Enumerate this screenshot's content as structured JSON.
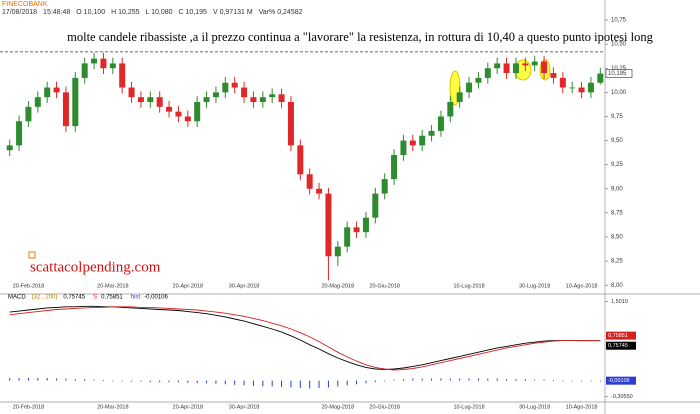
{
  "chart_data": [
    {
      "type": "candlestick",
      "symbol": "FINECOBANK",
      "info": [
        "17/08/2018",
        "15:48:48",
        "O 10,100",
        "H 10,255",
        "L 10,080",
        "C 10,195",
        "V 0,97131 M",
        "Var% 0,24582"
      ],
      "title": "molte candele ribassiste ,a il prezzo continua a \"lavorare\" la resistenza, in rottura di 10,40 a questo punto ipotesi long",
      "watermark": "scattacolpending.com",
      "up_color": "#2e8b2e",
      "down_color": "#e02828",
      "categories": [
        null,
        null,
        "20-Feb-2018",
        null,
        null,
        null,
        null,
        null,
        null,
        null,
        null,
        "20-Mar-2018",
        null,
        null,
        null,
        null,
        null,
        null,
        null,
        "20-Apr-2018",
        null,
        null,
        null,
        null,
        null,
        "30-Apr-2018",
        null,
        null,
        null,
        null,
        null,
        null,
        null,
        null,
        null,
        "20-Mag-2018",
        null,
        null,
        null,
        null,
        "20-Giu-2018",
        null,
        null,
        null,
        null,
        null,
        null,
        null,
        null,
        "10-Lug-2018",
        null,
        null,
        null,
        null,
        null,
        null,
        "30-Lug-2018",
        null,
        null,
        null,
        null,
        "10-Ago-2018",
        null,
        null
      ],
      "open": [
        9.4,
        9.45,
        9.7,
        9.85,
        9.95,
        10.05,
        10.0,
        9.65,
        10.15,
        10.3,
        10.35,
        10.25,
        10.3,
        10.05,
        9.95,
        9.9,
        9.95,
        9.85,
        9.8,
        9.75,
        9.7,
        9.9,
        9.95,
        10.0,
        10.1,
        10.05,
        9.95,
        9.9,
        9.95,
        9.98,
        9.9,
        9.45,
        9.15,
        9.0,
        8.95,
        8.3,
        8.4,
        8.6,
        8.55,
        8.7,
        8.95,
        9.1,
        9.35,
        9.5,
        9.45,
        9.55,
        9.6,
        9.75,
        9.9,
        10.0,
        10.1,
        10.15,
        10.25,
        10.3,
        10.2,
        10.3,
        10.28,
        10.32,
        10.2,
        10.15,
        10.05,
        10.05,
        10.0,
        10.1
      ],
      "high": [
        9.51,
        9.76,
        9.91,
        10.01,
        10.11,
        10.11,
        10.06,
        10.21,
        10.36,
        10.41,
        10.41,
        10.36,
        10.36,
        10.11,
        10.01,
        10.01,
        10.01,
        9.91,
        9.86,
        9.81,
        9.96,
        10.01,
        10.06,
        10.16,
        10.16,
        10.11,
        10.01,
        10.01,
        10.04,
        10.04,
        9.96,
        9.51,
        9.21,
        9.06,
        9.01,
        8.46,
        8.66,
        8.66,
        8.76,
        9.01,
        9.16,
        9.41,
        9.56,
        9.56,
        9.61,
        9.66,
        9.81,
        9.96,
        10.06,
        10.16,
        10.21,
        10.31,
        10.36,
        10.36,
        10.36,
        10.36,
        10.38,
        10.38,
        10.26,
        10.21,
        10.11,
        10.11,
        10.16,
        10.255
      ],
      "low": [
        9.34,
        9.39,
        9.64,
        9.79,
        9.89,
        9.94,
        9.59,
        9.59,
        10.09,
        10.24,
        10.19,
        10.19,
        9.99,
        9.89,
        9.84,
        9.84,
        9.79,
        9.74,
        9.69,
        9.64,
        9.64,
        9.84,
        9.89,
        9.94,
        9.99,
        9.89,
        9.84,
        9.84,
        9.89,
        9.84,
        9.39,
        9.09,
        8.94,
        8.89,
        8.05,
        8.2,
        8.34,
        8.49,
        8.49,
        8.64,
        8.89,
        9.04,
        9.29,
        9.39,
        9.39,
        9.49,
        9.54,
        9.69,
        9.84,
        9.94,
        10.04,
        10.09,
        10.19,
        10.14,
        10.14,
        10.22,
        10.22,
        10.14,
        10.09,
        9.99,
        9.99,
        9.94,
        9.94,
        10.08
      ],
      "close": [
        9.45,
        9.7,
        9.85,
        9.95,
        10.05,
        10.0,
        9.65,
        10.15,
        10.3,
        10.35,
        10.25,
        10.3,
        10.05,
        9.95,
        9.9,
        9.95,
        9.85,
        9.8,
        9.75,
        9.7,
        9.9,
        9.95,
        10.0,
        10.1,
        10.05,
        9.95,
        9.9,
        9.95,
        9.98,
        9.9,
        9.45,
        9.15,
        9.0,
        8.95,
        8.3,
        8.4,
        8.6,
        8.55,
        8.7,
        8.95,
        9.1,
        9.35,
        9.5,
        9.45,
        9.55,
        9.6,
        9.75,
        9.9,
        10.0,
        10.1,
        10.15,
        10.25,
        10.3,
        10.2,
        10.3,
        10.28,
        10.32,
        10.2,
        10.15,
        10.05,
        10.05,
        10.0,
        10.1,
        10.195
      ],
      "last_label": "10,195",
      "reference_line": 10.42,
      "ylim": [
        7.95,
        10.875
      ],
      "yticks": [
        {
          "value": 8,
          "label": "8,00"
        },
        {
          "value": 8.25,
          "label": "8,25"
        },
        {
          "value": 8.5,
          "label": "8,50"
        },
        {
          "value": 8.75,
          "label": "8,75"
        },
        {
          "value": 9,
          "label": "9,00"
        },
        {
          "value": 9.25,
          "label": "9,25"
        },
        {
          "value": 9.5,
          "label": "9,50"
        },
        {
          "value": 9.75,
          "label": "9,75"
        },
        {
          "value": 10,
          "label": "10,00"
        },
        {
          "value": 10.25,
          "label": "10,25"
        },
        {
          "value": 10.5,
          "label": "10,50"
        },
        {
          "value": 10.75,
          "label": "10,75"
        }
      ]
    },
    {
      "type": "macd",
      "params": "(32 , 200)",
      "categories": [
        null,
        null,
        "20-Feb-2018",
        null,
        null,
        null,
        null,
        null,
        null,
        null,
        null,
        "20-Mar-2018",
        null,
        null,
        null,
        null,
        null,
        null,
        null,
        "20-Apr-2018",
        null,
        null,
        null,
        null,
        null,
        "30-Apr-2018",
        null,
        null,
        null,
        null,
        null,
        null,
        null,
        null,
        null,
        "20-Mag-2018",
        null,
        null,
        null,
        null,
        "20-Giu-2018",
        null,
        null,
        null,
        null,
        null,
        null,
        null,
        null,
        "10-Lug-2018",
        null,
        null,
        null,
        null,
        null,
        null,
        "30-Lug-2018",
        null,
        null,
        null,
        null,
        "10-Ago-2018",
        null,
        null
      ],
      "series": [
        {
          "name": "MACD",
          "color": "#000000",
          "last_label": "0,75745",
          "values": [
            1.3,
            1.32,
            1.34,
            1.36,
            1.38,
            1.39,
            1.4,
            1.4,
            1.41,
            1.41,
            1.4,
            1.4,
            1.39,
            1.38,
            1.37,
            1.36,
            1.35,
            1.34,
            1.33,
            1.31,
            1.29,
            1.27,
            1.24,
            1.21,
            1.17,
            1.13,
            1.08,
            1.03,
            0.98,
            0.92,
            0.85,
            0.77,
            0.68,
            0.6,
            0.51,
            0.43,
            0.36,
            0.3,
            0.25,
            0.22,
            0.21,
            0.22,
            0.24,
            0.27,
            0.3,
            0.34,
            0.38,
            0.42,
            0.46,
            0.5,
            0.54,
            0.58,
            0.62,
            0.65,
            0.68,
            0.71,
            0.73,
            0.75,
            0.76,
            0.76,
            0.76,
            0.757,
            0.757,
            0.75745
          ]
        },
        {
          "name": "S",
          "color": "#d42020",
          "last_label": "0,75851",
          "values": [
            1.25,
            1.27,
            1.29,
            1.31,
            1.33,
            1.35,
            1.36,
            1.37,
            1.38,
            1.39,
            1.39,
            1.4,
            1.4,
            1.4,
            1.39,
            1.39,
            1.38,
            1.37,
            1.36,
            1.35,
            1.34,
            1.32,
            1.3,
            1.28,
            1.25,
            1.22,
            1.18,
            1.14,
            1.09,
            1.04,
            0.98,
            0.91,
            0.83,
            0.74,
            0.64,
            0.54,
            0.45,
            0.37,
            0.3,
            0.25,
            0.22,
            0.2,
            0.21,
            0.23,
            0.26,
            0.3,
            0.34,
            0.38,
            0.42,
            0.46,
            0.5,
            0.54,
            0.58,
            0.62,
            0.65,
            0.68,
            0.71,
            0.73,
            0.75,
            0.76,
            0.76,
            0.76,
            0.758,
            0.75851
          ]
        },
        {
          "name": "hist",
          "color": "#2a3fd0",
          "last_label": "-0,00106",
          "values": [
            0.05,
            0.05,
            0.05,
            0.05,
            0.05,
            0.04,
            0.04,
            0.03,
            0.03,
            0.02,
            0.01,
            0,
            -0.01,
            -0.02,
            -0.02,
            -0.03,
            -0.03,
            -0.03,
            -0.03,
            -0.04,
            -0.05,
            -0.05,
            -0.06,
            -0.07,
            -0.08,
            -0.09,
            -0.1,
            -0.11,
            -0.11,
            -0.12,
            -0.13,
            -0.14,
            -0.15,
            -0.14,
            -0.13,
            -0.11,
            -0.09,
            -0.07,
            -0.05,
            -0.03,
            -0.01,
            0.02,
            0.03,
            0.04,
            0.04,
            0.04,
            0.04,
            0.04,
            0.04,
            0.04,
            0.04,
            0.04,
            0.04,
            0.03,
            0.03,
            0.03,
            0.02,
            0.02,
            0.01,
            0,
            0,
            0,
            -0.001,
            -0.00106
          ]
        }
      ],
      "ylim": [
        -0.33,
        1.53
      ],
      "yticks": [
        {
          "value": 1.501,
          "label": "1,5010"
        },
        {
          "value": -0.3055,
          "label": "-0,30550"
        }
      ]
    }
  ]
}
